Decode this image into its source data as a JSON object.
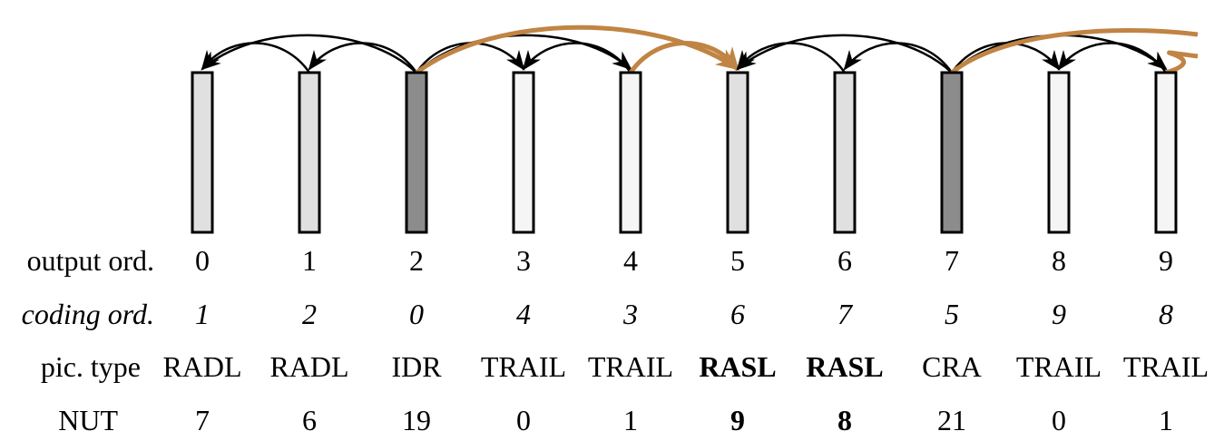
{
  "row_labels": {
    "output": "output ord.",
    "coding": "coding ord.",
    "type": "pic. type",
    "nut": "NUT"
  },
  "colors": {
    "idr_cra_fill": "#8c8c8c",
    "leading_fill": "#e0e0e0",
    "trail_fill": "#f5f5f5",
    "outline": "#000000",
    "arrow_black": "#000000",
    "arrow_orange": "#c08444"
  },
  "pictures": [
    {
      "output": "0",
      "coding": "1",
      "type": "RADL",
      "nut": "7",
      "kind": "leading",
      "bold": false
    },
    {
      "output": "1",
      "coding": "2",
      "type": "RADL",
      "nut": "6",
      "kind": "leading",
      "bold": false
    },
    {
      "output": "2",
      "coding": "0",
      "type": "IDR",
      "nut": "19",
      "kind": "intra",
      "bold": false
    },
    {
      "output": "3",
      "coding": "4",
      "type": "TRAIL",
      "nut": "0",
      "kind": "trail",
      "bold": false
    },
    {
      "output": "4",
      "coding": "3",
      "type": "TRAIL",
      "nut": "1",
      "kind": "trail",
      "bold": false
    },
    {
      "output": "5",
      "coding": "6",
      "type": "RASL",
      "nut": "9",
      "kind": "leading",
      "bold": true
    },
    {
      "output": "6",
      "coding": "7",
      "type": "RASL",
      "nut": "8",
      "kind": "leading",
      "bold": true
    },
    {
      "output": "7",
      "coding": "5",
      "type": "CRA",
      "nut": "21",
      "kind": "intra",
      "bold": false
    },
    {
      "output": "8",
      "coding": "9",
      "type": "TRAIL",
      "nut": "0",
      "kind": "trail",
      "bold": false
    },
    {
      "output": "9",
      "coding": "8",
      "type": "TRAIL",
      "nut": "1",
      "kind": "trail",
      "bold": false
    }
  ],
  "references": [
    {
      "from": 2,
      "to": 0,
      "color": "black"
    },
    {
      "from": 2,
      "to": 1,
      "color": "black"
    },
    {
      "from": 1,
      "to": 0,
      "color": "black"
    },
    {
      "from": 2,
      "to": 3,
      "color": "black"
    },
    {
      "from": 2,
      "to": 4,
      "color": "black"
    },
    {
      "from": 4,
      "to": 3,
      "color": "black"
    },
    {
      "from": 2,
      "to": 5,
      "color": "orange"
    },
    {
      "from": 4,
      "to": 5,
      "color": "orange"
    },
    {
      "from": 7,
      "to": 5,
      "color": "black"
    },
    {
      "from": 7,
      "to": 6,
      "color": "black"
    },
    {
      "from": 6,
      "to": 5,
      "color": "black"
    },
    {
      "from": 7,
      "to": 8,
      "color": "black"
    },
    {
      "from": 7,
      "to": 9,
      "color": "black"
    },
    {
      "from": 9,
      "to": 8,
      "color": "black"
    },
    {
      "from": 7,
      "to": "next",
      "color": "orange"
    },
    {
      "from": 9,
      "to": "next",
      "color": "orange"
    }
  ]
}
